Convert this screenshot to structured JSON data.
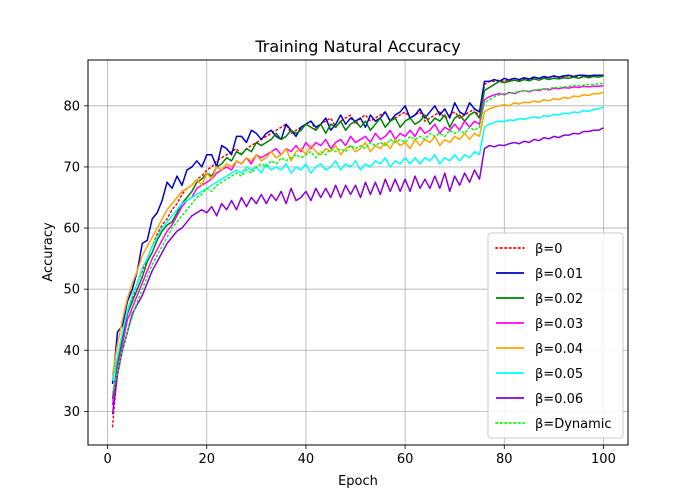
{
  "chart_data": {
    "type": "line",
    "title": "Training Natural Accuracy",
    "xlabel": "Epoch",
    "ylabel": "Accuracy",
    "xlim": [
      -3.95,
      104.95
    ],
    "ylim": [
      24.5,
      87.5
    ],
    "xticks": [
      0,
      20,
      40,
      60,
      80,
      100
    ],
    "yticks": [
      30,
      40,
      50,
      60,
      70,
      80
    ],
    "grid": true,
    "legend_position": "lower-right",
    "x": [
      1,
      2,
      3,
      4,
      5,
      6,
      7,
      8,
      9,
      10,
      11,
      12,
      13,
      14,
      15,
      16,
      17,
      18,
      19,
      20,
      21,
      22,
      23,
      24,
      25,
      26,
      27,
      28,
      29,
      30,
      31,
      32,
      33,
      34,
      35,
      36,
      37,
      38,
      39,
      40,
      41,
      42,
      43,
      44,
      45,
      46,
      47,
      48,
      49,
      50,
      51,
      52,
      53,
      54,
      55,
      56,
      57,
      58,
      59,
      60,
      61,
      62,
      63,
      64,
      65,
      66,
      67,
      68,
      69,
      70,
      71,
      72,
      73,
      74,
      75,
      76,
      77,
      78,
      79,
      80,
      81,
      82,
      83,
      84,
      85,
      86,
      87,
      88,
      89,
      90,
      91,
      92,
      93,
      94,
      95,
      96,
      97,
      98,
      99,
      100
    ],
    "series": [
      {
        "name": "β=0",
        "color": "#ff0000",
        "style": "dotted",
        "values": [
          27.5,
          37.0,
          42.0,
          46.0,
          48.5,
          51.0,
          53.0,
          55.0,
          57.0,
          59.0,
          60.5,
          61.5,
          63.0,
          64.0,
          65.5,
          66.5,
          67.0,
          68.0,
          68.5,
          69.5,
          70.0,
          71.0,
          71.5,
          72.0,
          72.5,
          73.0,
          72.0,
          73.0,
          73.5,
          74.0,
          74.5,
          75.0,
          75.5,
          76.0,
          76.5,
          77.0,
          75.5,
          76.0,
          76.5,
          77.0,
          77.5,
          76.0,
          77.0,
          77.5,
          78.0,
          76.5,
          77.5,
          78.0,
          78.5,
          77.0,
          78.0,
          78.5,
          77.5,
          78.0,
          78.5,
          79.0,
          77.5,
          78.0,
          78.5,
          79.0,
          78.0,
          78.5,
          79.0,
          77.5,
          78.0,
          78.5,
          79.0,
          78.0,
          78.5,
          79.0,
          78.0,
          78.5,
          79.0,
          79.5,
          78.0,
          83.5,
          84.0,
          84.0,
          84.2,
          84.0,
          84.3,
          84.5,
          84.2,
          84.5,
          84.3,
          84.5,
          84.6,
          84.5,
          84.7,
          84.8,
          84.6,
          84.8,
          84.9,
          84.7,
          84.9,
          85.0,
          84.8,
          85.0,
          85.0,
          85.0
        ]
      },
      {
        "name": "β=0.01",
        "color": "#0000cc",
        "style": "solid",
        "values": [
          34.5,
          43.0,
          44.0,
          48.0,
          50.0,
          53.0,
          57.5,
          58.0,
          61.5,
          62.5,
          64.5,
          67.5,
          66.5,
          68.5,
          67.0,
          69.5,
          70.0,
          71.0,
          70.0,
          72.0,
          72.0,
          70.0,
          73.5,
          73.0,
          72.0,
          75.0,
          75.0,
          74.0,
          76.0,
          75.5,
          74.5,
          75.5,
          76.0,
          75.0,
          74.5,
          77.0,
          76.0,
          75.0,
          76.5,
          77.0,
          77.5,
          76.5,
          77.0,
          78.0,
          76.0,
          77.0,
          78.5,
          77.0,
          78.0,
          77.5,
          78.0,
          76.5,
          78.5,
          77.5,
          78.0,
          79.0,
          77.5,
          78.5,
          79.0,
          80.0,
          78.0,
          78.5,
          79.5,
          78.0,
          79.0,
          80.0,
          78.5,
          79.5,
          78.0,
          80.5,
          79.0,
          78.5,
          80.5,
          79.5,
          79.0,
          84.0,
          84.0,
          84.3,
          84.0,
          84.5,
          84.2,
          84.5,
          84.3,
          84.6,
          84.4,
          84.7,
          84.5,
          84.8,
          84.6,
          84.9,
          84.7,
          84.9,
          85.0,
          84.8,
          85.0,
          85.0,
          84.9,
          85.0,
          85.0,
          85.0
        ]
      },
      {
        "name": "β=0.02",
        "color": "#008000",
        "style": "solid",
        "values": [
          32.0,
          38.0,
          42.0,
          46.0,
          48.0,
          50.0,
          52.0,
          54.5,
          56.0,
          58.0,
          59.5,
          60.5,
          61.0,
          62.5,
          64.0,
          65.0,
          66.0,
          67.5,
          68.0,
          69.0,
          68.5,
          70.0,
          70.5,
          71.5,
          71.0,
          72.5,
          72.0,
          73.0,
          72.5,
          74.0,
          73.5,
          74.0,
          74.5,
          75.5,
          74.5,
          75.0,
          76.0,
          75.5,
          76.0,
          77.0,
          76.5,
          76.0,
          77.0,
          75.5,
          77.0,
          76.5,
          77.5,
          76.0,
          77.0,
          77.5,
          76.5,
          77.5,
          76.0,
          77.0,
          78.0,
          76.5,
          77.5,
          78.0,
          76.5,
          77.5,
          78.0,
          77.0,
          77.5,
          78.5,
          77.0,
          78.0,
          77.5,
          78.5,
          76.5,
          78.0,
          78.5,
          77.5,
          78.5,
          79.0,
          78.0,
          82.5,
          83.0,
          83.5,
          84.0,
          83.8,
          84.0,
          84.2,
          84.0,
          84.3,
          84.1,
          84.4,
          84.2,
          84.5,
          84.3,
          84.5,
          84.4,
          84.6,
          84.5,
          84.7,
          84.5,
          84.8,
          84.6,
          84.8,
          84.7,
          84.9
        ]
      },
      {
        "name": "β=0.03",
        "color": "#ff00ff",
        "style": "solid",
        "values": [
          31.0,
          37.0,
          41.0,
          45.0,
          47.0,
          49.0,
          51.0,
          53.0,
          55.0,
          56.5,
          58.0,
          59.5,
          60.5,
          62.0,
          63.5,
          64.5,
          65.0,
          66.5,
          67.0,
          67.5,
          68.0,
          69.0,
          69.5,
          70.0,
          69.5,
          71.0,
          70.5,
          71.5,
          70.5,
          72.0,
          71.5,
          72.0,
          72.5,
          73.0,
          72.0,
          73.0,
          72.5,
          73.5,
          72.5,
          74.0,
          73.0,
          74.0,
          73.5,
          74.5,
          73.0,
          74.0,
          74.5,
          73.5,
          75.0,
          74.0,
          74.5,
          75.0,
          74.0,
          75.5,
          74.5,
          75.0,
          76.0,
          74.5,
          75.5,
          75.0,
          76.0,
          75.0,
          76.5,
          75.5,
          76.0,
          77.0,
          75.5,
          76.5,
          76.0,
          77.0,
          76.0,
          77.5,
          76.5,
          77.5,
          77.0,
          81.0,
          81.5,
          81.8,
          82.0,
          81.8,
          82.2,
          82.0,
          82.3,
          82.5,
          82.3,
          82.6,
          82.5,
          82.8,
          82.6,
          82.9,
          82.8,
          83.0,
          82.9,
          83.1,
          83.0,
          83.2,
          83.1,
          83.2,
          83.2,
          83.3
        ]
      },
      {
        "name": "β=0.04",
        "color": "#ffa500",
        "style": "solid",
        "values": [
          36.0,
          41.0,
          45.0,
          48.5,
          51.0,
          53.0,
          55.5,
          57.0,
          58.5,
          60.0,
          61.5,
          63.0,
          64.0,
          65.0,
          66.0,
          66.5,
          67.0,
          68.0,
          67.0,
          69.0,
          68.0,
          70.0,
          69.5,
          70.5,
          70.0,
          71.0,
          70.5,
          71.5,
          71.0,
          72.0,
          71.0,
          71.5,
          72.5,
          71.5,
          72.0,
          73.0,
          71.0,
          72.5,
          73.0,
          72.0,
          73.5,
          72.5,
          72.0,
          73.0,
          72.5,
          73.5,
          72.0,
          73.0,
          73.5,
          72.5,
          73.0,
          74.0,
          72.5,
          73.5,
          73.0,
          74.0,
          73.0,
          74.5,
          73.5,
          74.0,
          73.0,
          74.5,
          73.5,
          74.5,
          74.0,
          75.0,
          73.5,
          74.5,
          74.0,
          75.0,
          74.5,
          75.5,
          74.5,
          75.5,
          75.0,
          79.0,
          79.5,
          79.8,
          80.0,
          80.2,
          80.0,
          80.5,
          80.3,
          80.6,
          80.5,
          80.8,
          80.6,
          81.0,
          80.8,
          81.2,
          81.0,
          81.4,
          81.2,
          81.6,
          81.5,
          81.8,
          81.7,
          82.0,
          82.0,
          82.2
        ]
      },
      {
        "name": "β=0.05",
        "color": "#00ffff",
        "style": "solid",
        "values": [
          35.0,
          39.0,
          43.0,
          46.5,
          49.0,
          51.0,
          53.5,
          55.0,
          57.0,
          58.5,
          60.0,
          61.0,
          62.0,
          63.0,
          64.0,
          64.5,
          65.0,
          65.5,
          66.0,
          66.5,
          67.0,
          67.5,
          68.0,
          68.5,
          69.0,
          69.5,
          69.0,
          70.0,
          69.5,
          70.0,
          69.0,
          70.5,
          69.5,
          70.0,
          69.5,
          70.5,
          69.0,
          70.0,
          69.5,
          70.5,
          69.0,
          70.0,
          70.5,
          69.5,
          70.0,
          71.0,
          69.5,
          70.5,
          70.0,
          71.0,
          69.5,
          70.5,
          70.0,
          71.0,
          70.5,
          71.5,
          70.0,
          71.0,
          70.5,
          71.5,
          70.5,
          71.5,
          70.5,
          71.5,
          71.0,
          72.0,
          70.5,
          71.5,
          71.0,
          72.0,
          71.0,
          72.0,
          71.5,
          72.5,
          72.0,
          76.5,
          77.0,
          77.3,
          77.5,
          77.4,
          77.7,
          77.6,
          77.9,
          77.8,
          78.0,
          78.2,
          78.0,
          78.4,
          78.3,
          78.6,
          78.5,
          78.8,
          78.7,
          79.0,
          78.9,
          79.2,
          79.1,
          79.4,
          79.5,
          79.8
        ]
      },
      {
        "name": "β=0.06",
        "color": "#8b00d8",
        "style": "solid",
        "values": [
          29.5,
          36.0,
          40.0,
          43.0,
          46.0,
          47.5,
          49.0,
          51.0,
          53.0,
          54.5,
          56.0,
          57.5,
          58.5,
          59.5,
          60.0,
          61.0,
          62.0,
          62.5,
          63.0,
          62.5,
          63.5,
          62.0,
          64.0,
          63.0,
          64.5,
          63.0,
          65.0,
          63.5,
          65.0,
          64.0,
          65.5,
          64.0,
          65.5,
          64.5,
          66.0,
          64.0,
          66.5,
          64.5,
          65.0,
          66.0,
          64.5,
          66.5,
          65.0,
          66.5,
          65.0,
          67.0,
          65.0,
          67.0,
          65.5,
          67.0,
          65.0,
          67.5,
          65.5,
          67.5,
          65.5,
          68.0,
          66.0,
          68.0,
          66.0,
          68.0,
          66.0,
          68.5,
          66.5,
          68.0,
          66.5,
          68.5,
          66.5,
          69.0,
          66.0,
          68.5,
          67.0,
          69.0,
          67.5,
          69.5,
          68.0,
          73.0,
          73.5,
          73.3,
          73.6,
          73.5,
          73.8,
          74.0,
          73.8,
          74.2,
          74.0,
          74.5,
          74.3,
          74.8,
          74.6,
          75.0,
          74.8,
          75.2,
          75.2,
          75.5,
          75.4,
          75.8,
          75.8,
          76.0,
          76.0,
          76.4
        ]
      },
      {
        "name": "β=Dynamic",
        "color": "#00ff00",
        "style": "dotted",
        "values": [
          33.0,
          36.5,
          40.0,
          43.0,
          45.5,
          48.0,
          50.0,
          52.0,
          54.0,
          55.5,
          57.0,
          58.5,
          60.0,
          61.0,
          62.0,
          63.0,
          64.0,
          65.0,
          65.5,
          66.5,
          66.0,
          67.0,
          67.5,
          68.0,
          68.5,
          69.0,
          68.5,
          69.5,
          69.0,
          70.0,
          70.5,
          70.0,
          71.0,
          70.5,
          71.5,
          71.0,
          71.5,
          72.0,
          71.5,
          72.0,
          72.5,
          71.5,
          72.5,
          72.0,
          73.0,
          72.5,
          73.0,
          72.5,
          73.5,
          73.0,
          73.5,
          73.0,
          74.0,
          73.5,
          74.0,
          73.5,
          74.5,
          74.0,
          74.5,
          74.0,
          75.0,
          74.5,
          75.0,
          74.5,
          75.5,
          75.0,
          75.5,
          75.0,
          76.0,
          75.5,
          76.0,
          75.5,
          76.5,
          76.0,
          76.5,
          80.5,
          81.0,
          81.5,
          81.8,
          82.0,
          82.0,
          82.2,
          82.3,
          82.5,
          82.4,
          82.6,
          82.7,
          82.8,
          82.8,
          83.0,
          83.0,
          83.1,
          83.2,
          83.3,
          83.3,
          83.4,
          83.5,
          83.5,
          83.6,
          83.7
        ]
      }
    ]
  }
}
